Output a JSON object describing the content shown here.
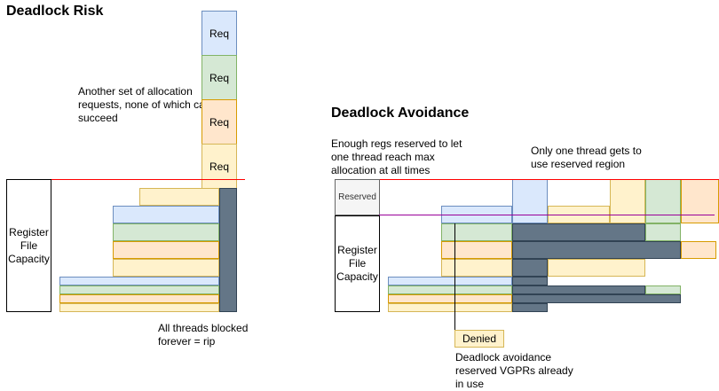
{
  "left": {
    "title": "Deadlock Risk",
    "request_note": "Another set of allocation requests, none of which can succeed",
    "req_label": "Req",
    "capacity_label": "Register File Capacity",
    "blocked_note": "All threads blocked forever = rip"
  },
  "right": {
    "title": "Deadlock Avoidance",
    "reserve_note": "Enough regs reserved to let one thread reach max allocation at all times",
    "one_thread_note": "Only one thread gets to use reserved region",
    "reserved_label": "Reserved",
    "capacity_label": "Register File Capacity",
    "denied_label": "Denied",
    "denied_note": "Deadlock avoidance reserved VGPRs already in use"
  },
  "colors": {
    "blue": "#dae8fc",
    "green": "#d5e8d4",
    "orange": "#ffe6cc",
    "yellow": "#fff2cc",
    "blocked": "#647687",
    "capacity_line": "#ff0000",
    "reserve_line": "#990099"
  }
}
